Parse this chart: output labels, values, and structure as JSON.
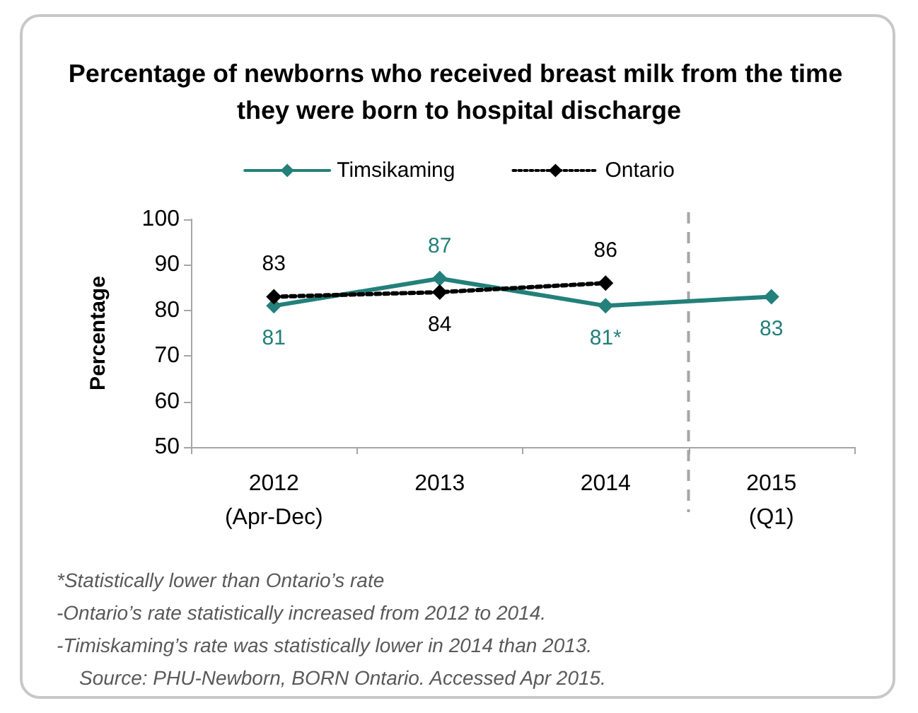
{
  "chart_data": {
    "type": "line",
    "title": "Percentage of newborns who received breast milk from the time they were born to hospital discharge",
    "ylabel": "Percentage",
    "categories": [
      "2012\n(Apr-Dec)",
      "2013",
      "2014",
      "2015\n(Q1)"
    ],
    "series": [
      {
        "name": "Timsikaming",
        "color": "#23807a",
        "values": [
          81,
          87,
          81,
          83
        ],
        "value_labels": [
          "81",
          "87",
          "81*",
          "83"
        ],
        "line_style": "solid"
      },
      {
        "name": "Ontario",
        "color": "#000000",
        "values": [
          83,
          84,
          86,
          null
        ],
        "value_labels": [
          "83",
          "84",
          "86",
          null
        ],
        "line_style": "dotted"
      }
    ],
    "ylim": [
      50,
      100
    ],
    "yticks": [
      50,
      60,
      70,
      80,
      90,
      100
    ],
    "grid": false,
    "legend": "top",
    "marker": "diamond",
    "annotations": [
      "*Statistically lower than Ontario’s rate",
      "-Ontario’s rate statistically increased from 2012 to 2014.",
      "-Timiskaming’s rate was statistically lower in 2014 than 2013.",
      "Source: PHU-Newborn, BORN Ontario. Accessed Apr 2015."
    ]
  }
}
